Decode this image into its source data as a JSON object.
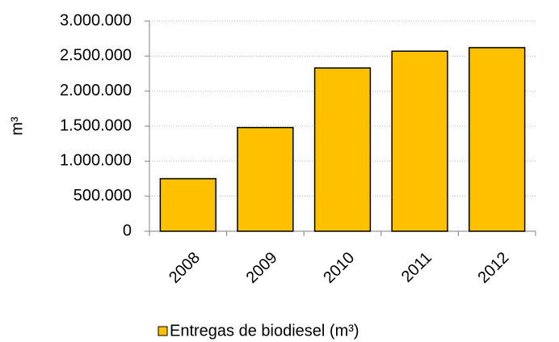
{
  "chart_data": {
    "type": "bar",
    "y_label": "m³",
    "categories": [
      "2008",
      "2009",
      "2010",
      "2011",
      "2012"
    ],
    "series": [
      {
        "name": "Entregas de biodiesel (m³)",
        "color": "#ffc000",
        "values": [
          750000,
          1480000,
          2330000,
          2570000,
          2620000
        ]
      }
    ],
    "ylim": [
      0,
      3000000
    ],
    "yticks": [
      0,
      {
        "value": 500000,
        "label": "500.000"
      },
      {
        "value": 1000000,
        "label": "1.000.000"
      },
      {
        "value": 1500000,
        "label": "1.500.000"
      },
      {
        "value": 2000000,
        "label": "2.000.000"
      },
      {
        "value": 2500000,
        "label": "2.500.000"
      },
      {
        "value": 3000000,
        "label": "3.000.000"
      }
    ],
    "grid": true,
    "legend": "bottom"
  }
}
